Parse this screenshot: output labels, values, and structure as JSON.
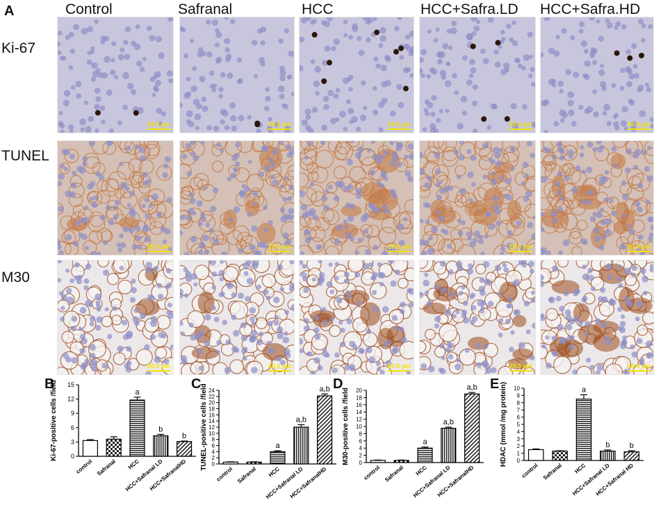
{
  "figure": {
    "panel_labels": [
      "A",
      "B",
      "C",
      "D",
      "E"
    ],
    "column_headers": [
      "Control",
      "Safranal",
      "HCC",
      "HCC+Safra.LD",
      "HCC+Safra.HD"
    ],
    "row_labels": [
      "Ki-67",
      "TUNEL",
      "M30"
    ],
    "scale_bar_text": "20.0 µm",
    "colors": {
      "ki67_background": "#c8c6dd",
      "ki67_nucleus": "#8f8ec6",
      "positive_nucleus": "#2a1708",
      "tunel_background": "#d4c0b6",
      "tunel_stain": "#c2763f",
      "m30_background": "#ece8ea",
      "m30_stain": "#9a4a1c",
      "scale_bar": "#f2e200"
    }
  },
  "chart_data": [
    {
      "panel": "B",
      "type": "bar",
      "ylabel": "Ki-67-positive cells /field",
      "categories": [
        "control",
        "Safranal",
        "HCC",
        "HCC+Safranal LD",
        "HCC+SafranalHD"
      ],
      "values": [
        3.3,
        3.6,
        11.8,
        4.3,
        3.1
      ],
      "errors": [
        0.2,
        0.5,
        0.6,
        0.3,
        0.1
      ],
      "annotations": [
        "",
        "",
        "a",
        "b",
        "b"
      ],
      "ylim": [
        0,
        15
      ],
      "yticks": [
        0,
        3,
        6,
        9,
        12,
        15
      ]
    },
    {
      "panel": "C",
      "type": "bar",
      "ylabel": "TUNEL-positive cells /field",
      "categories": [
        "control",
        "Safranal",
        "HCC",
        "HCC+Safranal LD",
        "HCC+SafranalHD"
      ],
      "values": [
        0.6,
        0.6,
        4.0,
        12.0,
        22.2
      ],
      "errors": [
        0.1,
        0.1,
        0.3,
        0.8,
        0.6
      ],
      "annotations": [
        "",
        "",
        "a",
        "a,b",
        "a,b"
      ],
      "ylim": [
        0,
        24
      ],
      "yticks": [
        0,
        2,
        4,
        6,
        8,
        10,
        12,
        14,
        16,
        18,
        20,
        22,
        24
      ]
    },
    {
      "panel": "D",
      "type": "bar",
      "ylabel": "M30-positive cells /field",
      "categories": [
        "control",
        "Safranal",
        "HCC",
        "HCC+Safranal LD",
        "HCC+SafranalHD"
      ],
      "values": [
        0.6,
        0.6,
        4.0,
        9.5,
        19.0
      ],
      "errors": [
        0.1,
        0.1,
        0.3,
        0.3,
        0.4
      ],
      "annotations": [
        "",
        "",
        "a",
        "a,b",
        "a,b"
      ],
      "ylim": [
        0,
        20
      ],
      "yticks": [
        0,
        2,
        4,
        6,
        8,
        10,
        12,
        14,
        16,
        18,
        20
      ]
    },
    {
      "panel": "E",
      "type": "bar",
      "ylabel": "HDAC  (mmol /mg protein)",
      "categories": [
        "control",
        "Safranal",
        "HCC",
        "HCC+Safranal LD",
        "HCC+Safranal HD"
      ],
      "values": [
        1.5,
        1.3,
        8.5,
        1.3,
        1.2
      ],
      "errors": [
        0.1,
        0.05,
        0.6,
        0.15,
        0.15
      ],
      "annotations": [
        "",
        "",
        "a",
        "b",
        "b"
      ],
      "ylim": [
        0,
        10
      ],
      "yticks": [
        0,
        1,
        2,
        3,
        4,
        5,
        6,
        7,
        8,
        9,
        10
      ]
    }
  ]
}
